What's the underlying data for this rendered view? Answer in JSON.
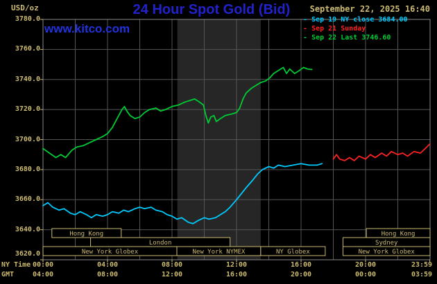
{
  "colors": {
    "background": "#000000",
    "khaki": "#cdbb72",
    "grid": "#555555",
    "border": "#8a8a8a",
    "band": "#262626",
    "title_blue": "#2222cc",
    "link_blue": "#2233dd"
  },
  "header": {
    "unit_label": "USD/oz",
    "title": "24 Hour Spot Gold (Bid)",
    "datetime": "September 22, 2025 16:40",
    "watermark": "www.kitco.com"
  },
  "legend": [
    {
      "marker": "-",
      "label": "Sep 19 NY close 3684.00",
      "color": "#00ccff"
    },
    {
      "marker": "-",
      "label": "Sep 21 Sunday",
      "color": "#ff2222"
    },
    {
      "marker": "-",
      "label": "Sep 22 Last 3746.60",
      "color": "#00cc33"
    }
  ],
  "axes": {
    "ny_label": "NY Time",
    "gmt_label": "GMT",
    "y_ticks": [
      "3780.0",
      "3760.0",
      "3740.0",
      "3720.0",
      "3700.0",
      "3680.0",
      "3660.0",
      "3640.0",
      "3620.0"
    ],
    "x_ny": [
      "00:00",
      "04:00",
      "08:00",
      "12:00",
      "16:00",
      "20:00",
      "23:59"
    ],
    "x_gmt": [
      "04:00",
      "08:00",
      "12:00",
      "16:00",
      "20:00",
      "00:00",
      "03:59"
    ],
    "x_tick_t": [
      0,
      4,
      8,
      12,
      16,
      20,
      23.983
    ]
  },
  "sessions": [
    {
      "label": "Hong Kong",
      "row": 0,
      "t0": 0.55,
      "t1": 4.85
    },
    {
      "label": "Hong Kong",
      "row": 0,
      "t0": 20.05,
      "t1": 24
    },
    {
      "label": "London",
      "row": 1,
      "t0": 2.95,
      "t1": 11.6
    },
    {
      "label": "Sydney",
      "row": 1,
      "t0": 18.6,
      "t1": 24
    },
    {
      "label": "New York Globex",
      "row": 2,
      "t0": 0,
      "t1": 8.3
    },
    {
      "label": "New York NYMEX",
      "row": 2,
      "t0": 8.3,
      "t1": 13.5
    },
    {
      "label": "NY Globex",
      "row": 2,
      "t0": 13.5,
      "t1": 17.5
    },
    {
      "label": "New York Globex",
      "row": 2,
      "t0": 18.6,
      "t1": 24
    }
  ],
  "chart_data": {
    "type": "line",
    "title": "24 Hour Spot Gold (Bid)",
    "ylabel": "USD/oz",
    "ylim": [
      3620,
      3780
    ],
    "xlim": [
      0,
      24
    ],
    "x_unit": "hours, NY time",
    "grid": true,
    "legend_position": "top-right",
    "shaded_band": {
      "t0": 8.33,
      "t1": 13.5
    },
    "series": [
      {
        "name": "Sep 19 NY close 3684.00",
        "color": "#00ccff",
        "points": [
          [
            0,
            3656
          ],
          [
            0.3,
            3658
          ],
          [
            0.6,
            3655
          ],
          [
            1.0,
            3653
          ],
          [
            1.3,
            3654
          ],
          [
            1.7,
            3651
          ],
          [
            2.0,
            3650
          ],
          [
            2.3,
            3652
          ],
          [
            2.7,
            3650
          ],
          [
            3.0,
            3648
          ],
          [
            3.3,
            3650
          ],
          [
            3.7,
            3649
          ],
          [
            4.0,
            3650
          ],
          [
            4.3,
            3652
          ],
          [
            4.7,
            3651
          ],
          [
            5.0,
            3653
          ],
          [
            5.3,
            3652
          ],
          [
            5.7,
            3654
          ],
          [
            6.0,
            3655
          ],
          [
            6.3,
            3654
          ],
          [
            6.7,
            3655
          ],
          [
            7.0,
            3653
          ],
          [
            7.4,
            3652
          ],
          [
            7.7,
            3650
          ],
          [
            8.0,
            3649
          ],
          [
            8.3,
            3647
          ],
          [
            8.6,
            3648
          ],
          [
            9.0,
            3645
          ],
          [
            9.3,
            3644
          ],
          [
            9.6,
            3646
          ],
          [
            10.0,
            3648
          ],
          [
            10.3,
            3647
          ],
          [
            10.7,
            3648
          ],
          [
            11.0,
            3650
          ],
          [
            11.3,
            3652
          ],
          [
            11.6,
            3655
          ],
          [
            12.0,
            3660
          ],
          [
            12.3,
            3664
          ],
          [
            12.6,
            3668
          ],
          [
            13.0,
            3673
          ],
          [
            13.3,
            3677
          ],
          [
            13.6,
            3680
          ],
          [
            14.0,
            3682
          ],
          [
            14.3,
            3681
          ],
          [
            14.6,
            3683
          ],
          [
            15.0,
            3682
          ],
          [
            15.5,
            3683
          ],
          [
            16.0,
            3684
          ],
          [
            16.5,
            3683
          ],
          [
            17.0,
            3683
          ],
          [
            17.3,
            3684
          ]
        ]
      },
      {
        "name": "Sep 21 Sunday",
        "color": "#ff2222",
        "points": [
          [
            18.0,
            3687
          ],
          [
            18.2,
            3690
          ],
          [
            18.4,
            3687
          ],
          [
            18.7,
            3686
          ],
          [
            19.0,
            3688
          ],
          [
            19.3,
            3686
          ],
          [
            19.6,
            3689
          ],
          [
            20.0,
            3687
          ],
          [
            20.3,
            3690
          ],
          [
            20.6,
            3688
          ],
          [
            21.0,
            3691
          ],
          [
            21.3,
            3689
          ],
          [
            21.6,
            3692
          ],
          [
            22.0,
            3690
          ],
          [
            22.3,
            3691
          ],
          [
            22.6,
            3689
          ],
          [
            23.0,
            3692
          ],
          [
            23.4,
            3691
          ],
          [
            23.7,
            3694
          ],
          [
            23.98,
            3697
          ]
        ]
      },
      {
        "name": "Sep 22 Last 3746.60",
        "color": "#00cc33",
        "points": [
          [
            0,
            3694
          ],
          [
            0.4,
            3691
          ],
          [
            0.8,
            3688
          ],
          [
            1.1,
            3690
          ],
          [
            1.4,
            3688
          ],
          [
            1.8,
            3693
          ],
          [
            2.1,
            3695
          ],
          [
            2.5,
            3696
          ],
          [
            2.9,
            3698
          ],
          [
            3.3,
            3700
          ],
          [
            3.7,
            3702
          ],
          [
            4.0,
            3704
          ],
          [
            4.3,
            3708
          ],
          [
            4.6,
            3714
          ],
          [
            4.9,
            3720
          ],
          [
            5.05,
            3722
          ],
          [
            5.2,
            3719
          ],
          [
            5.4,
            3716
          ],
          [
            5.7,
            3714
          ],
          [
            6.0,
            3715
          ],
          [
            6.3,
            3718
          ],
          [
            6.6,
            3720
          ],
          [
            7.0,
            3721
          ],
          [
            7.3,
            3719
          ],
          [
            7.6,
            3720
          ],
          [
            8.0,
            3722
          ],
          [
            8.4,
            3723
          ],
          [
            8.8,
            3725
          ],
          [
            9.1,
            3726
          ],
          [
            9.4,
            3727
          ],
          [
            9.7,
            3725
          ],
          [
            9.95,
            3723
          ],
          [
            10.1,
            3716
          ],
          [
            10.25,
            3711
          ],
          [
            10.4,
            3715
          ],
          [
            10.6,
            3716
          ],
          [
            10.75,
            3712
          ],
          [
            11.0,
            3714
          ],
          [
            11.3,
            3716
          ],
          [
            11.7,
            3717
          ],
          [
            12.0,
            3718
          ],
          [
            12.2,
            3721
          ],
          [
            12.4,
            3727
          ],
          [
            12.6,
            3731
          ],
          [
            12.9,
            3734
          ],
          [
            13.2,
            3736
          ],
          [
            13.5,
            3738
          ],
          [
            13.8,
            3739
          ],
          [
            14.05,
            3741
          ],
          [
            14.3,
            3744
          ],
          [
            14.6,
            3746
          ],
          [
            14.9,
            3748
          ],
          [
            15.1,
            3744
          ],
          [
            15.3,
            3747
          ],
          [
            15.6,
            3744
          ],
          [
            15.9,
            3746
          ],
          [
            16.15,
            3748
          ],
          [
            16.4,
            3747
          ],
          [
            16.67,
            3746.6
          ]
        ]
      }
    ]
  }
}
